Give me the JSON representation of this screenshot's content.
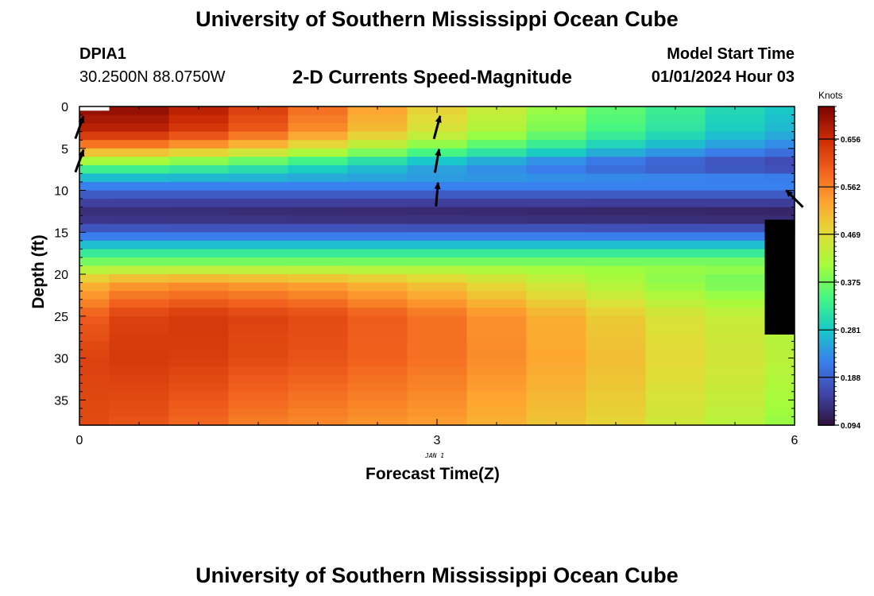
{
  "header": {
    "title": "University of Southern Mississippi Ocean Cube",
    "station": "DPIA1",
    "coordinates": "30.2500N  88.0750W",
    "subtitle": "2-D Currents Speed-Magnitude",
    "model_start_label": "Model Start Time",
    "model_start_value": "01/01/2024 Hour 03"
  },
  "footer": {
    "title": "University of Southern Mississippi Ocean Cube"
  },
  "chart_data": {
    "type": "heatmap",
    "xlabel": "Forecast Time(Z)",
    "ylabel": "Depth (ft)",
    "date_label": "JAN 1",
    "xlim": [
      0,
      6
    ],
    "ylim": [
      38,
      0
    ],
    "x_ticks": [
      "0",
      "3",
      "6"
    ],
    "y_ticks": [
      "0",
      "5",
      "10",
      "15",
      "20",
      "25",
      "30",
      "35"
    ],
    "colorbar": {
      "units": "Knots",
      "ticks": [
        "0.656",
        "0.562",
        "0.469",
        "0.375",
        "0.281",
        "0.188",
        "0.094"
      ],
      "range": [
        0.094,
        0.72
      ]
    },
    "columns_time": [
      0.0,
      0.5,
      1.0,
      1.5,
      2.0,
      2.5,
      3.0,
      3.5,
      4.0,
      4.5,
      5.0,
      5.5,
      6.0
    ],
    "depth_ft": [
      0.5,
      1.5,
      2.5,
      3.5,
      4.5,
      5.5,
      6.5,
      7.5,
      8.5,
      9.5,
      10.5,
      11.5,
      12.5,
      13.5,
      14.5,
      15.5,
      16.5,
      17.5,
      18.5,
      19.5,
      20.5,
      21.5,
      22.5,
      23.5,
      24.5,
      25.5,
      26.5,
      27.5,
      28.5,
      29.5,
      30.5,
      31.5,
      32.5,
      33.5,
      34.5,
      35.5,
      36.5,
      37.5
    ],
    "surface_speed": [
      0.7,
      0.7,
      0.67,
      0.63,
      0.58,
      0.53,
      0.48,
      0.44,
      0.4,
      0.36,
      0.33,
      0.3,
      0.28
    ],
    "speed_at_25ft": [
      0.6,
      0.63,
      0.64,
      0.63,
      0.62,
      0.6,
      0.58,
      0.55,
      0.52,
      0.49,
      0.46,
      0.44,
      0.42
    ],
    "speed_at_37ft": [
      0.62,
      0.61,
      0.59,
      0.57,
      0.56,
      0.55,
      0.54,
      0.52,
      0.5,
      0.48,
      0.45,
      0.43,
      0.4
    ],
    "minimum_speed_depth_ft": 13,
    "arrows": [
      {
        "time": 0,
        "depth": 2.5,
        "dir_deg": 20
      },
      {
        "time": 0,
        "depth": 6.5,
        "dir_deg": 20
      },
      {
        "time": 3,
        "depth": 2.5,
        "dir_deg": 15
      },
      {
        "time": 3,
        "depth": 6.5,
        "dir_deg": 10
      },
      {
        "time": 3,
        "depth": 10.5,
        "dir_deg": 5
      },
      {
        "time": 6,
        "depth": 11,
        "dir_deg": -45
      }
    ]
  }
}
